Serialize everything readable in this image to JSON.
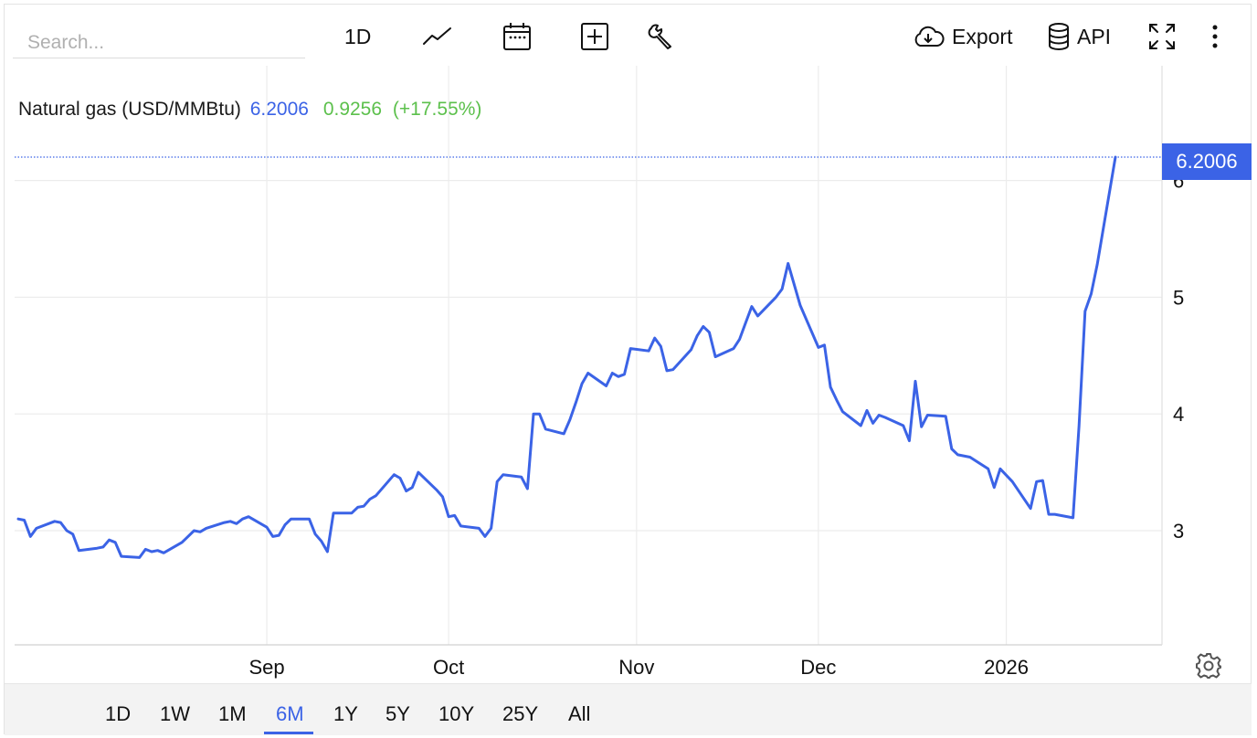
{
  "search": {
    "placeholder": "Search..."
  },
  "toolbar": {
    "interval_label": "1D",
    "export_label": "Export",
    "api_label": "API",
    "icons": [
      "line-chart-icon",
      "calendar-icon",
      "plus-square-icon",
      "wrench-icon",
      "cloud-download-icon",
      "database-icon",
      "fullscreen-icon",
      "more-vertical-icon"
    ]
  },
  "legend": {
    "name": "Natural gas (USD/MMBtu)",
    "value": "6.2006",
    "change": "0.9256",
    "change_pct": "(+17.55%)"
  },
  "price_tag": "6.2006",
  "colors": {
    "line": "#3b63e6",
    "positive": "#5cc04c",
    "grid": "#ececec"
  },
  "ranges": {
    "items": [
      "1D",
      "1W",
      "1M",
      "6M",
      "1Y",
      "5Y",
      "10Y",
      "25Y",
      "All"
    ],
    "active": "6M"
  },
  "chart_data": {
    "type": "line",
    "title": "",
    "xlabel": "",
    "ylabel": "",
    "ylim": [
      2.0,
      6.5
    ],
    "yticks": [
      3,
      4,
      5,
      6
    ],
    "xticks": [
      {
        "label": "Sep",
        "date": "2025-09-01"
      },
      {
        "label": "Oct",
        "date": "2025-10-01"
      },
      {
        "label": "Nov",
        "date": "2025-11-01"
      },
      {
        "label": "Dec",
        "date": "2025-12-01"
      },
      {
        "label": "2026",
        "date": "2026-01-01"
      }
    ],
    "grid": true,
    "series": [
      {
        "values": [
          [
            "2025-07-22",
            3.1
          ],
          [
            "2025-07-23",
            3.09
          ],
          [
            "2025-07-24",
            2.95
          ],
          [
            "2025-07-25",
            3.02
          ],
          [
            "2025-07-28",
            3.08
          ],
          [
            "2025-07-29",
            3.07
          ],
          [
            "2025-07-30",
            3.0
          ],
          [
            "2025-07-31",
            2.97
          ],
          [
            "2025-08-01",
            2.83
          ],
          [
            "2025-08-04",
            2.85
          ],
          [
            "2025-08-05",
            2.86
          ],
          [
            "2025-08-06",
            2.92
          ],
          [
            "2025-08-07",
            2.9
          ],
          [
            "2025-08-08",
            2.78
          ],
          [
            "2025-08-11",
            2.77
          ],
          [
            "2025-08-12",
            2.84
          ],
          [
            "2025-08-13",
            2.82
          ],
          [
            "2025-08-14",
            2.83
          ],
          [
            "2025-08-15",
            2.81
          ],
          [
            "2025-08-18",
            2.9
          ],
          [
            "2025-08-19",
            2.95
          ],
          [
            "2025-08-20",
            3.0
          ],
          [
            "2025-08-21",
            2.99
          ],
          [
            "2025-08-22",
            3.02
          ],
          [
            "2025-08-25",
            3.07
          ],
          [
            "2025-08-26",
            3.08
          ],
          [
            "2025-08-27",
            3.06
          ],
          [
            "2025-08-28",
            3.1
          ],
          [
            "2025-08-29",
            3.12
          ],
          [
            "2025-09-01",
            3.03
          ],
          [
            "2025-09-02",
            2.95
          ],
          [
            "2025-09-03",
            2.96
          ],
          [
            "2025-09-04",
            3.05
          ],
          [
            "2025-09-05",
            3.1
          ],
          [
            "2025-09-08",
            3.1
          ],
          [
            "2025-09-09",
            2.97
          ],
          [
            "2025-09-10",
            2.91
          ],
          [
            "2025-09-11",
            2.82
          ],
          [
            "2025-09-12",
            3.15
          ],
          [
            "2025-09-15",
            3.15
          ],
          [
            "2025-09-16",
            3.2
          ],
          [
            "2025-09-17",
            3.21
          ],
          [
            "2025-09-18",
            3.27
          ],
          [
            "2025-09-19",
            3.3
          ],
          [
            "2025-09-22",
            3.48
          ],
          [
            "2025-09-23",
            3.45
          ],
          [
            "2025-09-24",
            3.34
          ],
          [
            "2025-09-25",
            3.37
          ],
          [
            "2025-09-26",
            3.5
          ],
          [
            "2025-09-29",
            3.35
          ],
          [
            "2025-09-30",
            3.29
          ],
          [
            "2025-10-01",
            3.12
          ],
          [
            "2025-10-02",
            3.13
          ],
          [
            "2025-10-03",
            3.04
          ],
          [
            "2025-10-06",
            3.02
          ],
          [
            "2025-10-07",
            2.95
          ],
          [
            "2025-10-08",
            3.02
          ],
          [
            "2025-10-09",
            3.42
          ],
          [
            "2025-10-10",
            3.48
          ],
          [
            "2025-10-13",
            3.46
          ],
          [
            "2025-10-14",
            3.36
          ],
          [
            "2025-10-15",
            4.0
          ],
          [
            "2025-10-16",
            4.0
          ],
          [
            "2025-10-17",
            3.87
          ],
          [
            "2025-10-20",
            3.83
          ],
          [
            "2025-10-21",
            3.95
          ],
          [
            "2025-10-22",
            4.1
          ],
          [
            "2025-10-23",
            4.26
          ],
          [
            "2025-10-24",
            4.35
          ],
          [
            "2025-10-27",
            4.24
          ],
          [
            "2025-10-28",
            4.35
          ],
          [
            "2025-10-29",
            4.32
          ],
          [
            "2025-10-30",
            4.34
          ],
          [
            "2025-10-31",
            4.56
          ],
          [
            "2025-11-03",
            4.54
          ],
          [
            "2025-11-04",
            4.65
          ],
          [
            "2025-11-05",
            4.58
          ],
          [
            "2025-11-06",
            4.37
          ],
          [
            "2025-11-07",
            4.38
          ],
          [
            "2025-11-10",
            4.55
          ],
          [
            "2025-11-11",
            4.67
          ],
          [
            "2025-11-12",
            4.75
          ],
          [
            "2025-11-13",
            4.7
          ],
          [
            "2025-11-14",
            4.49
          ],
          [
            "2025-11-17",
            4.56
          ],
          [
            "2025-11-18",
            4.64
          ],
          [
            "2025-11-19",
            4.78
          ],
          [
            "2025-11-20",
            4.92
          ],
          [
            "2025-11-21",
            4.84
          ],
          [
            "2025-11-24",
            5.0
          ],
          [
            "2025-11-25",
            5.07
          ],
          [
            "2025-11-26",
            5.29
          ],
          [
            "2025-11-28",
            4.93
          ],
          [
            "2025-12-01",
            4.57
          ],
          [
            "2025-12-02",
            4.59
          ],
          [
            "2025-12-03",
            4.23
          ],
          [
            "2025-12-04",
            4.12
          ],
          [
            "2025-12-05",
            4.02
          ],
          [
            "2025-12-08",
            3.9
          ],
          [
            "2025-12-09",
            4.03
          ],
          [
            "2025-12-10",
            3.92
          ],
          [
            "2025-12-11",
            3.99
          ],
          [
            "2025-12-12",
            3.97
          ],
          [
            "2025-12-15",
            3.9
          ],
          [
            "2025-12-16",
            3.77
          ],
          [
            "2025-12-17",
            4.28
          ],
          [
            "2025-12-18",
            3.89
          ],
          [
            "2025-12-19",
            3.99
          ],
          [
            "2025-12-22",
            3.98
          ],
          [
            "2025-12-23",
            3.7
          ],
          [
            "2025-12-24",
            3.65
          ],
          [
            "2025-12-26",
            3.63
          ],
          [
            "2025-12-29",
            3.53
          ],
          [
            "2025-12-30",
            3.37
          ],
          [
            "2025-12-31",
            3.53
          ],
          [
            "2026-01-02",
            3.42
          ],
          [
            "2026-01-05",
            3.19
          ],
          [
            "2026-01-06",
            3.42
          ],
          [
            "2026-01-07",
            3.43
          ],
          [
            "2026-01-08",
            3.14
          ],
          [
            "2026-01-09",
            3.14
          ],
          [
            "2026-01-12",
            3.11
          ],
          [
            "2026-01-13",
            3.9
          ],
          [
            "2026-01-14",
            4.88
          ],
          [
            "2026-01-15",
            5.03
          ],
          [
            "2026-01-16",
            5.28
          ],
          [
            "2026-01-19",
            6.2006
          ]
        ]
      }
    ]
  }
}
